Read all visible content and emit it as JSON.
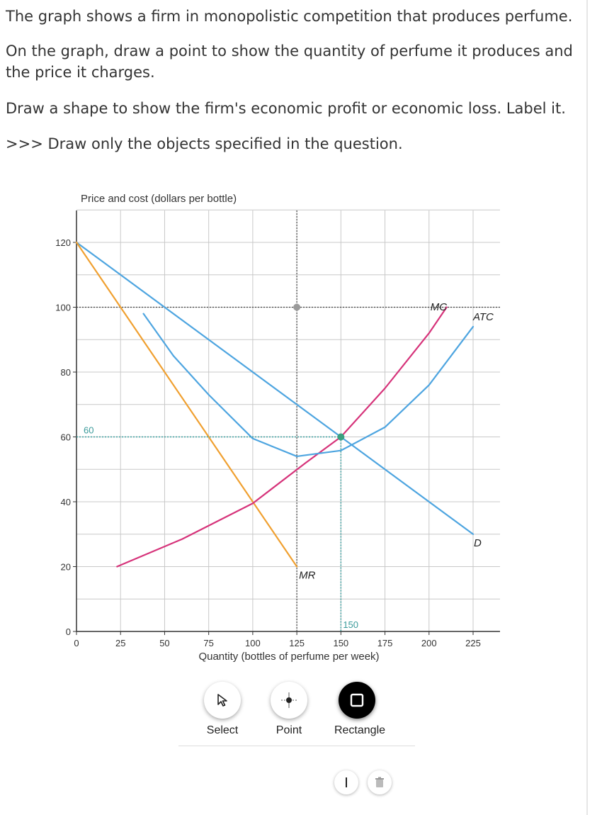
{
  "question": {
    "line1": "The graph shows a firm in monopolistic competition that produces perfume.",
    "line2a": "On the graph, draw a point to show the quantity of perfume it produces and",
    "line2b": "the price it charges.",
    "line3": "Draw a shape to show the firm's economic profit or economic loss. Label it.",
    "line4": ">>> Draw only the objects specified in the question."
  },
  "chart_data": {
    "type": "line",
    "ylabel": "Price and cost (dollars per bottle)",
    "xlabel": "Quantity (bottles of perfume per week)",
    "xlim": [
      0,
      225
    ],
    "ylim": [
      0,
      120
    ],
    "x_ticks": [
      0,
      25,
      50,
      75,
      100,
      125,
      150,
      175,
      200,
      225
    ],
    "y_ticks": [
      0,
      20,
      40,
      60,
      80,
      100,
      120
    ],
    "grid": true,
    "colors": {
      "D": "#4ea5e0",
      "ATC": "#4ea5e0",
      "MC": "#d6337a",
      "MR": "#f0a030"
    },
    "series": [
      {
        "name": "D",
        "x": [
          0,
          225
        ],
        "y": [
          120,
          30
        ]
      },
      {
        "name": "MR",
        "x": [
          0,
          125
        ],
        "y": [
          120,
          20
        ]
      },
      {
        "name": "MC",
        "x": [
          23,
          60,
          100,
          130,
          150,
          175,
          200,
          210
        ],
        "y": [
          20,
          28.5,
          39.5,
          52,
          60,
          75,
          92,
          100
        ]
      },
      {
        "name": "ATC",
        "x": [
          38,
          55,
          75,
          100,
          125,
          150,
          175,
          200,
          225
        ],
        "y": [
          98,
          85,
          73,
          59.5,
          54,
          55.8,
          63,
          76,
          94
        ]
      }
    ],
    "gray_guide": {
      "x": 125,
      "y_top": 100
    },
    "annotations": [
      {
        "text": "60",
        "x": 0,
        "y": 60
      },
      {
        "text": "150",
        "x": 150,
        "y": 0
      },
      {
        "text": "MR"
      },
      {
        "text": "MC"
      },
      {
        "text": "ATC"
      },
      {
        "text": "D"
      }
    ],
    "points": [
      {
        "x": 150,
        "y": 60
      }
    ]
  },
  "tools": {
    "select_label": "Select",
    "point_label": "Point",
    "rectangle_label": "Rectangle",
    "active": "Rectangle"
  }
}
